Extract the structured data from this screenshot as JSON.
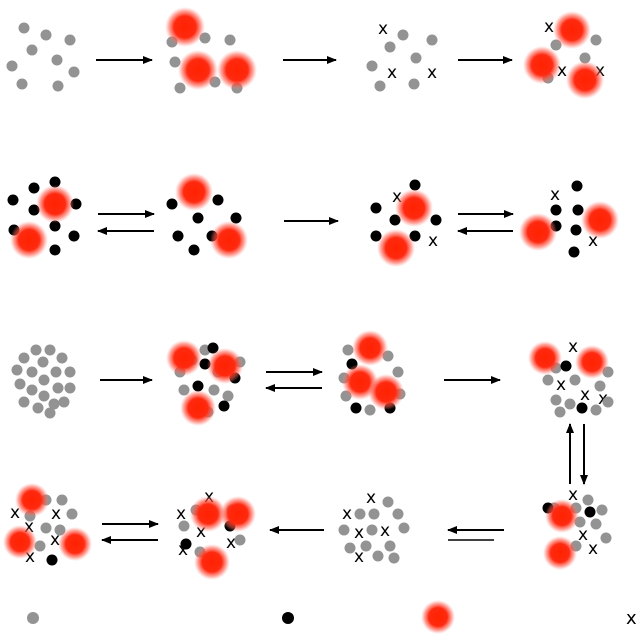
{
  "figure": {
    "description_panels": 16,
    "colors": {
      "grey_particle": "#939393",
      "black_particle": "#000000",
      "red_blob_core": "#ff2200",
      "arrow": "#000000",
      "background": "#ffffff"
    },
    "legend": {
      "items": [
        {
          "symbol": "grey-dot"
        },
        {
          "symbol": "black-dot"
        },
        {
          "symbol": "red-blob"
        },
        {
          "symbol": "x-mark",
          "text": "x"
        }
      ]
    },
    "cross_label": "x"
  }
}
